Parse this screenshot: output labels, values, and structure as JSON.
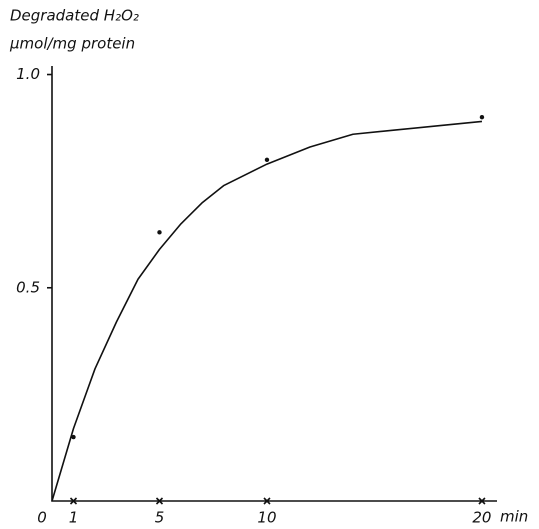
{
  "chart_data": {
    "type": "line",
    "y_label_lines": [
      "Degradated H₂O₂",
      "µmol/mg protein"
    ],
    "x_unit": "min",
    "xlim": [
      0,
      20.7
    ],
    "ylim": [
      0,
      1.02
    ],
    "xticks": [
      0,
      1,
      5,
      10,
      20
    ],
    "yticks": [
      0.5,
      {
        "value": 1,
        "label": "1.0"
      }
    ],
    "series": [
      {
        "style": "points",
        "color": "#111111",
        "x": [
          1,
          5,
          10,
          20
        ],
        "values": [
          0.15,
          0.63,
          0.8,
          0.9
        ]
      },
      {
        "style": "curve",
        "color": "#111111",
        "x": [
          0,
          1,
          2,
          3,
          4,
          5,
          6,
          7,
          8,
          10,
          12,
          14,
          16,
          18,
          20
        ],
        "values": [
          0,
          0.17,
          0.31,
          0.42,
          0.52,
          0.59,
          0.65,
          0.7,
          0.74,
          0.79,
          0.83,
          0.86,
          0.87,
          0.88,
          0.89
        ]
      }
    ]
  }
}
